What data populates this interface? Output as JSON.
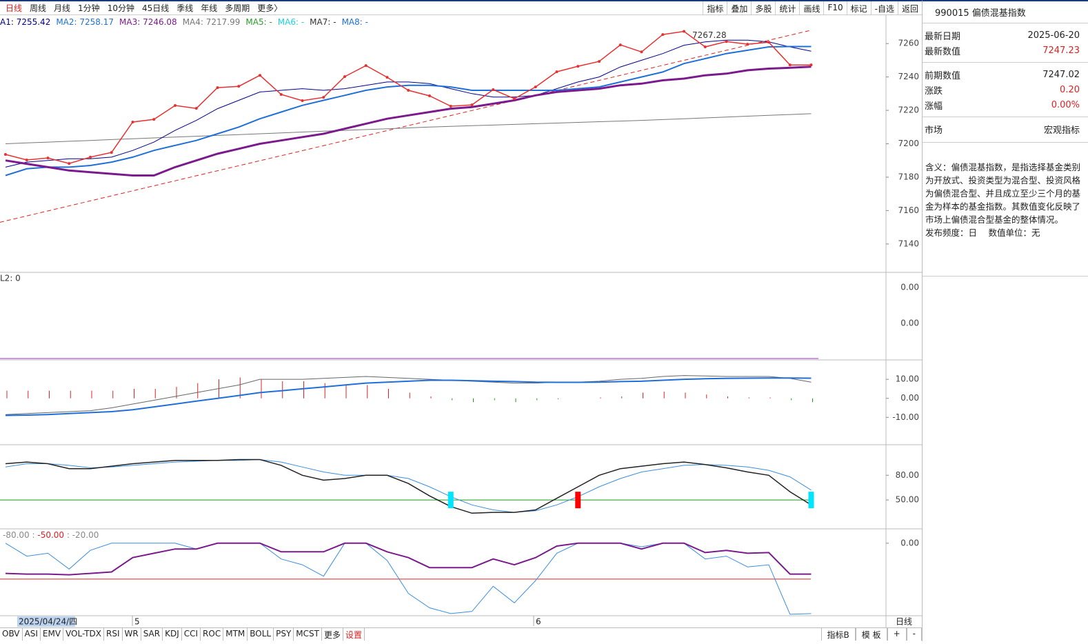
{
  "toolbar": {
    "periods": [
      "日线",
      "周线",
      "月线",
      "1分钟",
      "10分钟",
      "45日线",
      "季线",
      "年线",
      "多周期",
      "更多〉"
    ],
    "tools": [
      "指标",
      "叠加",
      "多股",
      "统计",
      "画线",
      "F10",
      "标记",
      "-自选",
      "返回"
    ]
  },
  "main": {
    "legend": [
      {
        "text": "A1: 7255.42",
        "color": "#00008b"
      },
      {
        "text": "MA2: 7258.17",
        "color": "#1e6fd9"
      },
      {
        "text": "MA3: 7246.08",
        "color": "#7b1a8c"
      },
      {
        "text": "MA4: 7217.99",
        "color": "#777777"
      },
      {
        "text": "MA5: -",
        "color": "#2a9d2a"
      },
      {
        "text": "MA6: -",
        "color": "#1ecfe0"
      },
      {
        "text": "MA7: -",
        "color": "#333333"
      },
      {
        "text": "MA8: -",
        "color": "#1e6fd9"
      }
    ],
    "ylim": [
      7123,
      7277
    ],
    "yticks": [
      7140,
      7160,
      7180,
      7200,
      7220,
      7240,
      7260
    ],
    "max_label": "7267.28",
    "trend": [
      7153,
      7268
    ],
    "close": [
      7193.6,
      7190.3,
      7191.5,
      7188.2,
      7192,
      7194.8,
      7213,
      7214.6,
      7222.9,
      7221.2,
      7233.6,
      7234.4,
      7241,
      7229.5,
      7225.8,
      7227.8,
      7240.2,
      7246.8,
      7239.8,
      7232,
      7228.7,
      7222.5,
      7223.3,
      7232.4,
      7227,
      7234,
      7243.1,
      7246.4,
      7249.3,
      7259.2,
      7255,
      7265.4,
      7267.3,
      7258,
      7261.2,
      7259.6,
      7260.8,
      7247.2,
      7247.2
    ],
    "series": [
      {
        "color": "#777777",
        "width": 1,
        "values": [
          7200,
          7200.5,
          7201,
          7201.5,
          7202,
          7202.5,
          7203,
          7203.5,
          7204,
          7204.5,
          7205,
          7205.5,
          7206,
          7206.5,
          7207,
          7207.5,
          7208,
          7208.5,
          7209,
          7209.5,
          7210,
          7210.4,
          7210.8,
          7211.2,
          7211.6,
          7212,
          7212.4,
          7212.8,
          7213.2,
          7213.6,
          7214,
          7214.5,
          7215,
          7215.5,
          7216,
          7216.5,
          7217,
          7217.5,
          7218
        ]
      },
      {
        "color": "#00008b",
        "width": 1,
        "values": [
          7186,
          7189,
          7190,
          7191,
          7191,
          7192,
          7196,
          7201,
          7208,
          7214,
          7221,
          7226,
          7231,
          7232,
          7233,
          7232,
          7233,
          7235,
          7237,
          7237,
          7236,
          7233,
          7230,
          7228,
          7228,
          7229,
          7233,
          7237,
          7240,
          7246,
          7250,
          7254,
          7259,
          7261,
          7262,
          7262,
          7261,
          7258,
          7255.4
        ]
      },
      {
        "color": "#1e6fd9",
        "width": 2,
        "values": [
          7181,
          7185,
          7186,
          7186,
          7187,
          7189,
          7192,
          7196,
          7199,
          7202,
          7206,
          7210,
          7215,
          7219,
          7223,
          7226,
          7229,
          7232,
          7234,
          7235,
          7235,
          7234,
          7232,
          7232,
          7232,
          7232,
          7232,
          7233,
          7234,
          7237,
          7240,
          7243,
          7248,
          7251,
          7254,
          7256,
          7258,
          7258.2,
          7258.2
        ]
      },
      {
        "color": "#7b1a8c",
        "width": 3,
        "values": [
          7190,
          7188,
          7186,
          7184,
          7183,
          7182,
          7181,
          7181,
          7186,
          7190,
          7194,
          7197,
          7200,
          7202,
          7204,
          7206,
          7209,
          7212,
          7215,
          7217,
          7219,
          7221,
          7222,
          7224,
          7226,
          7229,
          7231,
          7232,
          7233,
          7235,
          7236,
          7238,
          7239,
          7241,
          7242,
          7244,
          7245,
          7245.5,
          7246.1
        ]
      }
    ]
  },
  "vol": {
    "label": "L2: 0",
    "ticks": [
      "0.00",
      "0.00"
    ]
  },
  "macd": {
    "ylim": [
      -24.4,
      20.2
    ],
    "yticks": [
      {
        "value": 10,
        "label": "10.00"
      },
      {
        "value": 0,
        "label": "0.00"
      },
      {
        "value": -10,
        "label": "-10.00"
      }
    ],
    "bars": [
      4,
      4,
      4,
      4,
      4,
      4,
      5,
      5,
      6,
      8,
      10,
      11,
      10,
      9,
      9,
      8,
      7,
      7,
      5,
      3,
      1,
      -1,
      -2,
      -1,
      -2,
      -1,
      -0.5,
      0,
      0.5,
      1,
      3,
      3.5,
      3,
      2,
      1,
      0.5,
      0.5,
      -1,
      -2
    ],
    "series": [
      {
        "color": "#666666",
        "width": 1,
        "values": [
          -8.5,
          -8,
          -7.5,
          -7,
          -6.5,
          -5,
          -3,
          -1,
          1,
          3,
          5,
          7,
          10,
          10,
          10,
          10.5,
          11,
          11.5,
          11,
          10.5,
          10,
          9.5,
          9,
          8.5,
          8,
          8,
          8.5,
          8.5,
          9,
          10,
          10.5,
          11.5,
          12,
          11.8,
          11.5,
          11.5,
          11.5,
          10.5,
          8.5
        ]
      },
      {
        "color": "#1e6fd9",
        "width": 2,
        "values": [
          -9,
          -8.8,
          -8.5,
          -8,
          -7.5,
          -7,
          -6,
          -4.5,
          -3,
          -1.5,
          0,
          1.5,
          3,
          4,
          5,
          6,
          7,
          8,
          8.5,
          9,
          9.5,
          9.5,
          9.3,
          9,
          8.8,
          8.5,
          8.4,
          8.4,
          8.5,
          8.8,
          9,
          9.5,
          10,
          10.3,
          10.5,
          10.6,
          10.7,
          10.7,
          10.6
        ]
      }
    ]
  },
  "kdj": {
    "ylim": [
      15,
      117
    ],
    "yticks": [
      {
        "value": 80,
        "label": "80.00"
      },
      {
        "value": 50,
        "label": "50.00"
      }
    ],
    "series": [
      {
        "color": "#3a8ee0",
        "width": 1,
        "values": [
          90,
          94,
          94,
          92,
          89,
          90,
          92,
          94,
          96,
          97,
          98,
          98,
          99,
          96,
          90,
          84,
          80,
          80,
          80,
          76,
          66,
          54,
          44,
          38,
          35,
          37,
          44,
          54,
          66,
          76,
          84,
          88,
          92,
          93,
          92,
          90,
          86,
          78,
          62
        ]
      },
      {
        "color": "#222222",
        "width": 1.5,
        "values": [
          94,
          96,
          94,
          88,
          88,
          91,
          94,
          96,
          98,
          98,
          98,
          99,
          99,
          92,
          80,
          74,
          76,
          80,
          80,
          70,
          55,
          42,
          34,
          35,
          35,
          38,
          52,
          66,
          80,
          88,
          91,
          94,
          96,
          93,
          89,
          84,
          80,
          60,
          44
        ]
      }
    ]
  },
  "wr": {
    "legend": [
      {
        "text": "-80.00 : ",
        "color": "#888888"
      },
      {
        "text": "-50.00",
        "color": "#e02020"
      },
      {
        "text": " : -20.00",
        "color": "#888888"
      }
    ],
    "ref": -50,
    "ylim": [
      -101,
      20
    ],
    "yticks": [
      {
        "value": 0,
        "label": "0.00"
      }
    ],
    "series": [
      {
        "color": "#3a8ee0",
        "width": 1,
        "values": [
          0,
          -18,
          -14,
          -36,
          -10,
          0,
          0,
          0,
          0,
          -8,
          0,
          0,
          0,
          -22,
          -30,
          -46,
          0,
          0,
          -24,
          -70,
          -90,
          -98,
          -95,
          -60,
          -83,
          -52,
          -14,
          0,
          0,
          0,
          -5,
          0,
          0,
          -22,
          -18,
          -33,
          -30,
          -99,
          -98
        ]
      },
      {
        "color": "#7b1a8c",
        "width": 2,
        "values": [
          -42,
          -43,
          -43,
          -44,
          -42,
          -40,
          -20,
          -14,
          -8,
          -8,
          0,
          0,
          0,
          -12,
          -12,
          -12,
          0,
          0,
          -12,
          -20,
          -34,
          -34,
          -34,
          -22,
          -30,
          -20,
          -4,
          0,
          0,
          0,
          -8,
          0,
          0,
          -13,
          -10,
          -14,
          -13,
          -43,
          -43
        ]
      }
    ]
  },
  "dates": {
    "first": "2025/04/24/四",
    "months": [
      "5",
      "6"
    ],
    "period": "日线"
  },
  "tabs": {
    "left": [
      "OBV",
      "ASI",
      "EMV",
      "VOL-TDX",
      "RSI",
      "WR",
      "SAR",
      "KDJ",
      "CCI",
      "ROC",
      "MTM",
      "BOLL",
      "PSY",
      "MCST",
      "更多"
    ],
    "setting": "设置",
    "right": [
      "指标B",
      "模 板",
      "+",
      "-"
    ]
  },
  "panel": {
    "title": "990015 偏债混基指数",
    "rows": [
      {
        "k": "最新日期",
        "v": "2025-06-20"
      },
      {
        "k": "最新数值",
        "v": "7247.23",
        "red": true
      },
      {
        "k": "前期数值",
        "v": "7247.02"
      },
      {
        "k": "涨跌",
        "v": "0.20",
        "red": true
      },
      {
        "k": "涨幅",
        "v": "0.00%",
        "red": true
      },
      {
        "k": "市场",
        "v": "宏观指标"
      }
    ],
    "desc": "含义：偏债混基指数，是指选择基金类别为开放式、投资类型为混合型、投资风格为偏债混合型、并且成立至少三个月的基金为样本的基金指数。其数值变化反映了市场上偏债混合型基金的整体情况。",
    "freq": "发布频度：日　 数值单位：无"
  }
}
